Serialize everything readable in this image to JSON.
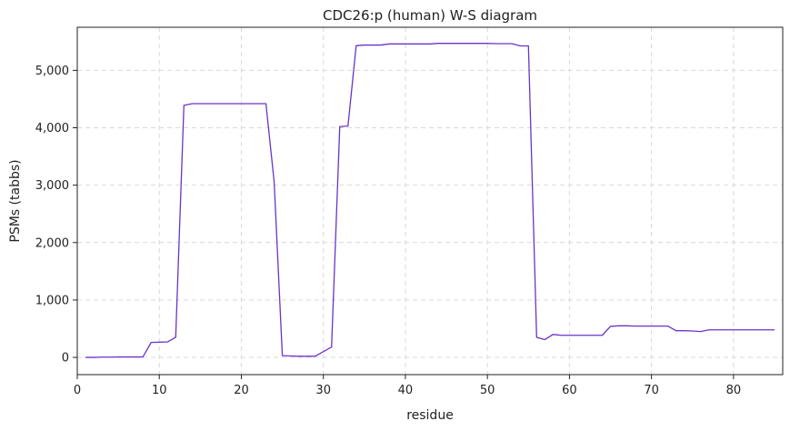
{
  "chart_data": {
    "type": "line",
    "title": "CDC26:p (human) W-S diagram",
    "xlabel": "residue",
    "ylabel": "PSMs (tabbs)",
    "xlim": [
      0,
      86
    ],
    "ylim": [
      -300,
      5750
    ],
    "xticks": [
      0,
      10,
      20,
      30,
      40,
      50,
      60,
      70,
      80
    ],
    "xtick_labels": [
      "0",
      "10",
      "20",
      "30",
      "40",
      "50",
      "60",
      "70",
      "80"
    ],
    "yticks": [
      0,
      1000,
      2000,
      3000,
      4000,
      5000
    ],
    "ytick_labels": [
      "0",
      "1,000",
      "2,000",
      "3,000",
      "4,000",
      "5,000"
    ],
    "grid": true,
    "line_color": "#6a34c8",
    "series": [
      {
        "x": [
          1,
          2,
          3,
          4,
          5,
          6,
          7,
          8,
          9,
          10,
          11,
          12,
          13,
          14,
          15,
          16,
          17,
          18,
          19,
          20,
          21,
          22,
          23,
          24,
          25,
          26,
          27,
          28,
          29,
          30,
          31,
          32,
          33,
          34,
          35,
          36,
          37,
          38,
          39,
          40,
          41,
          42,
          43,
          44,
          45,
          46,
          47,
          48,
          49,
          50,
          51,
          52,
          53,
          54,
          55,
          56,
          57,
          58,
          59,
          60,
          61,
          62,
          63,
          64,
          65,
          66,
          67,
          68,
          69,
          70,
          71,
          72,
          73,
          74,
          75,
          76,
          77,
          78,
          79,
          80,
          81,
          82,
          83,
          84,
          85
        ],
        "y": [
          0,
          0,
          5,
          5,
          8,
          8,
          8,
          8,
          260,
          265,
          270,
          350,
          4390,
          4420,
          4420,
          4420,
          4420,
          4420,
          4420,
          4420,
          4420,
          4420,
          4420,
          3060,
          30,
          25,
          20,
          20,
          20,
          100,
          180,
          4020,
          4030,
          5430,
          5440,
          5440,
          5440,
          5460,
          5460,
          5460,
          5460,
          5460,
          5460,
          5470,
          5470,
          5470,
          5470,
          5470,
          5470,
          5470,
          5465,
          5465,
          5465,
          5425,
          5425,
          350,
          310,
          400,
          385,
          385,
          385,
          385,
          385,
          385,
          540,
          550,
          550,
          545,
          545,
          545,
          545,
          545,
          465,
          465,
          460,
          450,
          480,
          480,
          480,
          480,
          480,
          480,
          480,
          480,
          480
        ]
      }
    ]
  }
}
